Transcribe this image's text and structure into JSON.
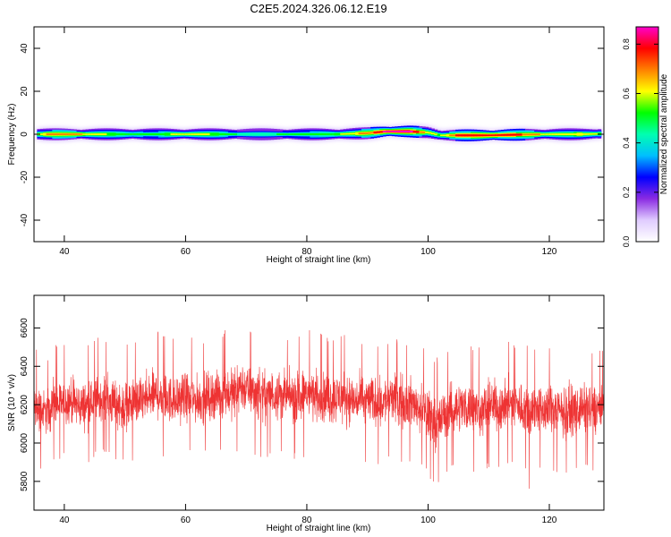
{
  "title": "C2E5.2024.326.06.12.E19",
  "chart_data": [
    {
      "type": "heatmap",
      "xlabel": "Height of straight line (km)",
      "ylabel": "Frequency (Hz)",
      "xlim": [
        35,
        129
      ],
      "ylim": [
        -50,
        50
      ],
      "xticks": [
        40,
        60,
        80,
        100,
        120
      ],
      "yticks": [
        40,
        20,
        0,
        -20,
        -40
      ],
      "grid": false,
      "colorbar": {
        "label": "Normalized spectral amplitude",
        "range": [
          0,
          0.87
        ],
        "ticks": [
          "0.0",
          "0.2",
          "0.4",
          "0.6",
          "0.8"
        ],
        "tick_values": [
          0,
          0.2,
          0.4,
          0.6,
          0.8
        ],
        "colormap": "rainbow",
        "colors": [
          "#ffffff",
          "#e0ccff",
          "#8a2be2",
          "#0000ff",
          "#00bfff",
          "#00ffb0",
          "#00ff00",
          "#ffff00",
          "#ff8000",
          "#ff0000",
          "#ff00cc"
        ]
      },
      "band_profile": {
        "height_km": [
          35.5,
          40,
          45,
          50,
          55,
          60,
          65,
          70,
          75,
          80,
          85,
          90,
          93,
          97,
          100,
          102,
          105,
          110,
          115,
          120,
          125,
          128.5
        ],
        "center_frequency_hz": [
          0,
          0,
          0,
          0,
          0,
          0,
          0,
          0,
          0,
          0,
          0,
          0.5,
          1.3,
          1.3,
          0.8,
          -0.5,
          -0.5,
          -0.5,
          -0.2,
          0,
          0,
          0.2
        ],
        "peak_amplitude": [
          0.62,
          0.72,
          0.6,
          0.52,
          0.5,
          0.64,
          0.55,
          0.45,
          0.48,
          0.5,
          0.55,
          0.7,
          0.85,
          0.85,
          0.6,
          0.55,
          0.78,
          0.82,
          0.75,
          0.6,
          0.65,
          0.55
        ]
      }
    },
    {
      "type": "line",
      "xlabel": "Height of straight line (km)",
      "ylabel": "SNR (10 * v/v)",
      "xlim": [
        35,
        129
      ],
      "ylim": [
        5650,
        6770
      ],
      "xticks": [
        40,
        60,
        80,
        100,
        120
      ],
      "yticks": [
        6600,
        6400,
        6200,
        6000,
        5800
      ],
      "grid": false,
      "series": [
        {
          "color": "#ee3333",
          "x": [
            35,
            36,
            37,
            38,
            39,
            40,
            41,
            42,
            43,
            44,
            45,
            46,
            47,
            48,
            49,
            50,
            51,
            52,
            53,
            54,
            55,
            56,
            57,
            58,
            59,
            60,
            61,
            62,
            63,
            64,
            65,
            66,
            67,
            68,
            69,
            70,
            71,
            72,
            73,
            74,
            75,
            76,
            77,
            78,
            79,
            80,
            81,
            82,
            83,
            84,
            85,
            86,
            87,
            88,
            89,
            90,
            91,
            92,
            93,
            94,
            95,
            96,
            97,
            98,
            99,
            100,
            101,
            102,
            103,
            104,
            105,
            106,
            107,
            108,
            109,
            110,
            111,
            112,
            113,
            114,
            115,
            116,
            117,
            118,
            119,
            120,
            121,
            122,
            123,
            124,
            125,
            126,
            127,
            128,
            129
          ],
          "mean": [
            6180,
            6170,
            6160,
            6190,
            6200,
            6210,
            6220,
            6200,
            6190,
            6200,
            6210,
            6230,
            6220,
            6210,
            6200,
            6190,
            6200,
            6210,
            6220,
            6230,
            6250,
            6240,
            6230,
            6220,
            6230,
            6240,
            6230,
            6220,
            6230,
            6240,
            6250,
            6240,
            6260,
            6250,
            6300,
            6280,
            6270,
            6260,
            6250,
            6250,
            6260,
            6250,
            6240,
            6240,
            6250,
            6260,
            6250,
            6240,
            6230,
            6230,
            6240,
            6240,
            6230,
            6220,
            6220,
            6230,
            6220,
            6210,
            6220,
            6230,
            6230,
            6220,
            6210,
            6200,
            6170,
            6150,
            6110,
            6120,
            6150,
            6180,
            6190,
            6190,
            6180,
            6170,
            6170,
            6190,
            6200,
            6190,
            6200,
            6210,
            6190,
            6180,
            6190,
            6180,
            6180,
            6170,
            6180,
            6160,
            6170,
            6170,
            6180,
            6180,
            6170,
            6180,
            6180
          ],
          "upper": [
            6500,
            6480,
            6460,
            6500,
            6520,
            6530,
            6540,
            6520,
            6510,
            6540,
            6560,
            6560,
            6550,
            6540,
            6520,
            6530,
            6520,
            6540,
            6560,
            6580,
            6600,
            6580,
            6560,
            6550,
            6560,
            6580,
            6560,
            6550,
            6560,
            6570,
            6590,
            6580,
            6600,
            6620,
            6720,
            6600,
            6590,
            6580,
            6570,
            6580,
            6600,
            6580,
            6570,
            6560,
            6570,
            6620,
            6600,
            6580,
            6560,
            6560,
            6580,
            6570,
            6560,
            6550,
            6550,
            6560,
            6540,
            6530,
            6540,
            6560,
            6550,
            6540,
            6530,
            6520,
            6500,
            6500,
            6450,
            6460,
            6500,
            6520,
            6530,
            6530,
            6520,
            6500,
            6500,
            6530,
            6540,
            6520,
            6530,
            6540,
            6520,
            6510,
            6520,
            6500,
            6510,
            6500,
            6510,
            6490,
            6500,
            6500,
            6520,
            6510,
            6500,
            6510,
            6520
          ],
          "lower": [
            5820,
            5850,
            5860,
            5900,
            5910,
            5920,
            5930,
            5900,
            5890,
            5900,
            5920,
            5930,
            5920,
            5910,
            5890,
            5880,
            5900,
            5910,
            5920,
            5930,
            5940,
            5930,
            5920,
            5900,
            5920,
            5930,
            5920,
            5910,
            5920,
            5930,
            5940,
            5930,
            5950,
            5940,
            5960,
            5950,
            5940,
            5930,
            5920,
            5920,
            5930,
            5920,
            5910,
            5910,
            5920,
            5930,
            5920,
            5910,
            5900,
            5900,
            5910,
            5910,
            5900,
            5890,
            5890,
            5900,
            5890,
            5880,
            5890,
            5900,
            5900,
            5890,
            5880,
            5870,
            5850,
            5820,
            5760,
            5780,
            5820,
            5860,
            5870,
            5870,
            5860,
            5840,
            5850,
            5870,
            5880,
            5870,
            5860,
            5870,
            5860,
            5850,
            5700,
            5850,
            5820,
            5840,
            5850,
            5830,
            5840,
            5840,
            5850,
            5850,
            5840,
            5850,
            5930
          ]
        }
      ]
    }
  ]
}
